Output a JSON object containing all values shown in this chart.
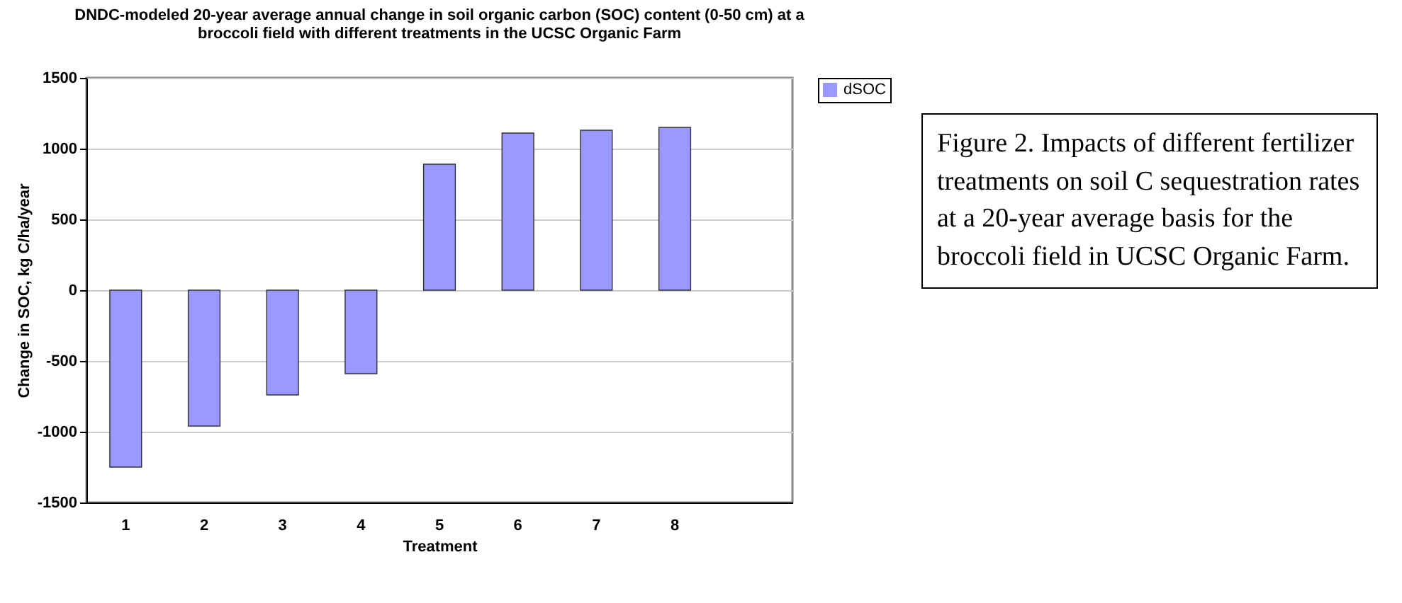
{
  "chart_data": {
    "type": "bar",
    "title": "DNDC-modeled 20-year average annual change in soil organic carbon (SOC) content (0-50 cm) at a broccoli field with different treatments in the UCSC Organic Farm",
    "xlabel": "Treatment",
    "ylabel": "Change in SOC, kg C/ha/year",
    "categories": [
      "1",
      "2",
      "3",
      "4",
      "5",
      "6",
      "7",
      "8",
      null
    ],
    "series": [
      {
        "name": "dSOC",
        "color": "#9999ff",
        "values": [
          -1250,
          -960,
          -740,
          -590,
          890,
          1110,
          1130,
          1150,
          null
        ]
      }
    ],
    "ylim": [
      -1500,
      1500
    ],
    "yticks": [
      -1500,
      -1000,
      -500,
      0,
      500,
      1000,
      1500
    ],
    "grid": "y",
    "legend": "right",
    "annotations": [
      "Figure 2. Impacts of different fertilizer treatments on soil C sequestration rates at a 20-year average basis for the broccoli field in UCSC Organic Farm."
    ]
  }
}
